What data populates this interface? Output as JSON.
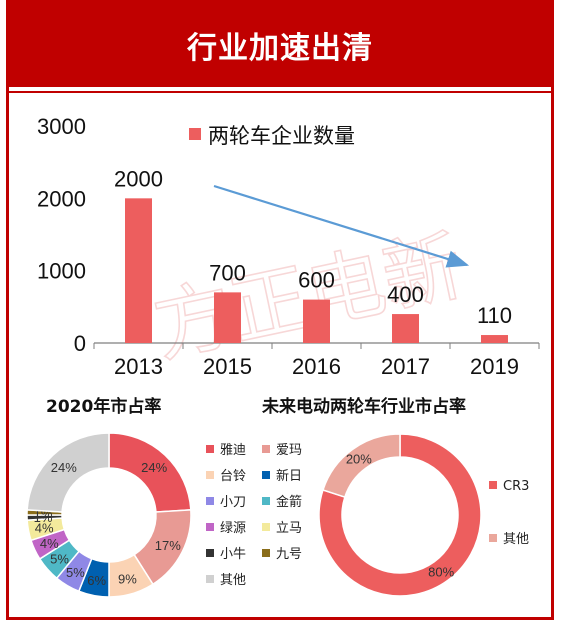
{
  "header": {
    "title": "行业加速出清"
  },
  "watermark": "方正电新",
  "chart_data": [
    {
      "type": "bar",
      "legend": "两轮车企业数量",
      "categories": [
        "2013",
        "2015",
        "2016",
        "2017",
        "2019"
      ],
      "values": [
        2000,
        700,
        600,
        400,
        110
      ],
      "value_labels": [
        "2000",
        "700",
        "600",
        "400",
        "110"
      ],
      "yticks": [
        "0",
        "1000",
        "2000",
        "3000"
      ],
      "ylim": [
        0,
        3000
      ],
      "color": "#ed5e5e",
      "annotation": "downward trend arrow",
      "arrow_color": "#5b9bd5"
    },
    {
      "type": "pie",
      "title": "2020年市占率",
      "labels": [
        "雅迪",
        "爱玛",
        "台铃",
        "新日",
        "小刀",
        "金箭",
        "绿源",
        "立马",
        "小牛",
        "九号",
        "其他"
      ],
      "values": [
        24,
        17,
        9,
        6,
        5,
        5,
        4,
        4,
        1,
        1,
        24
      ],
      "value_labels": [
        "24%",
        "17%",
        "9%",
        "6%",
        "5%",
        "5%",
        "4%",
        "4%",
        "1%",
        "1%",
        "24%"
      ],
      "colors": [
        "#e8525a",
        "#e89a94",
        "#fbd3b4",
        "#0060b0",
        "#8f88e6",
        "#4fb8c6",
        "#c065c6",
        "#f3ea9c",
        "#333333",
        "#8a6d1a",
        "#d0d0d0"
      ]
    },
    {
      "type": "pie",
      "title": "未来电动两轮车行业市占率",
      "labels": [
        "CR3",
        "其他"
      ],
      "values": [
        80,
        20
      ],
      "value_labels": [
        "80%",
        "20%"
      ],
      "colors": [
        "#ed5e5e",
        "#eaa79c"
      ]
    }
  ]
}
